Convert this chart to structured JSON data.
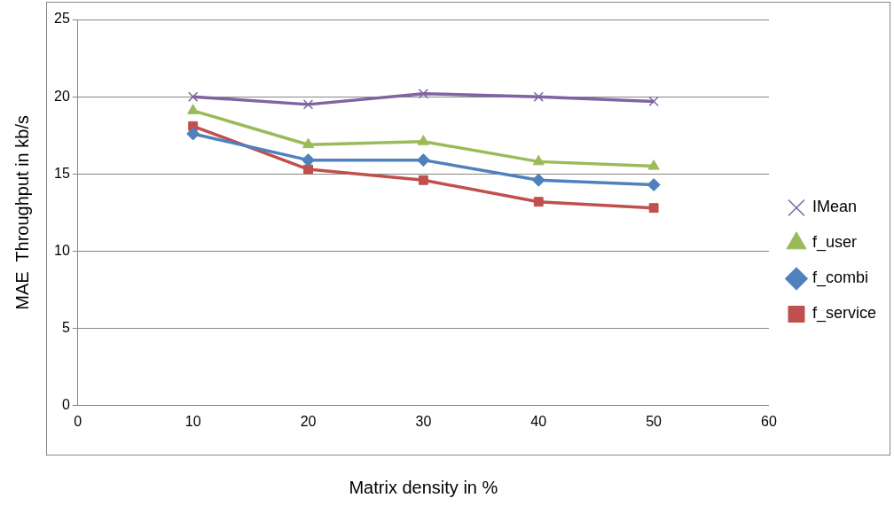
{
  "chart_data": {
    "type": "line",
    "xlabel": "Matrix density in %",
    "ylabel": "MAE  Throughput in kb/s",
    "x": [
      10,
      20,
      30,
      40,
      50
    ],
    "series": [
      {
        "name": "IMean",
        "color": "#8064a2",
        "marker": "cross",
        "values": [
          20.0,
          19.5,
          20.2,
          20.0,
          19.7
        ]
      },
      {
        "name": "f_user",
        "color": "#9bbb59",
        "marker": "triangle",
        "values": [
          19.1,
          16.9,
          17.1,
          15.8,
          15.5
        ]
      },
      {
        "name": "f_combi",
        "color": "#4f81bd",
        "marker": "diamond",
        "values": [
          17.6,
          15.9,
          15.9,
          14.6,
          14.3
        ]
      },
      {
        "name": "f_service",
        "color": "#c0504d",
        "marker": "square",
        "values": [
          18.1,
          15.3,
          14.6,
          13.2,
          12.8
        ]
      }
    ],
    "xlim": [
      0,
      60
    ],
    "xticks": [
      0,
      10,
      20,
      30,
      40,
      50,
      60
    ],
    "ylim": [
      0,
      25
    ],
    "yticks": [
      0,
      5,
      10,
      15,
      20,
      25
    ],
    "grid": "y",
    "legend": "right",
    "line_style": "solid"
  }
}
